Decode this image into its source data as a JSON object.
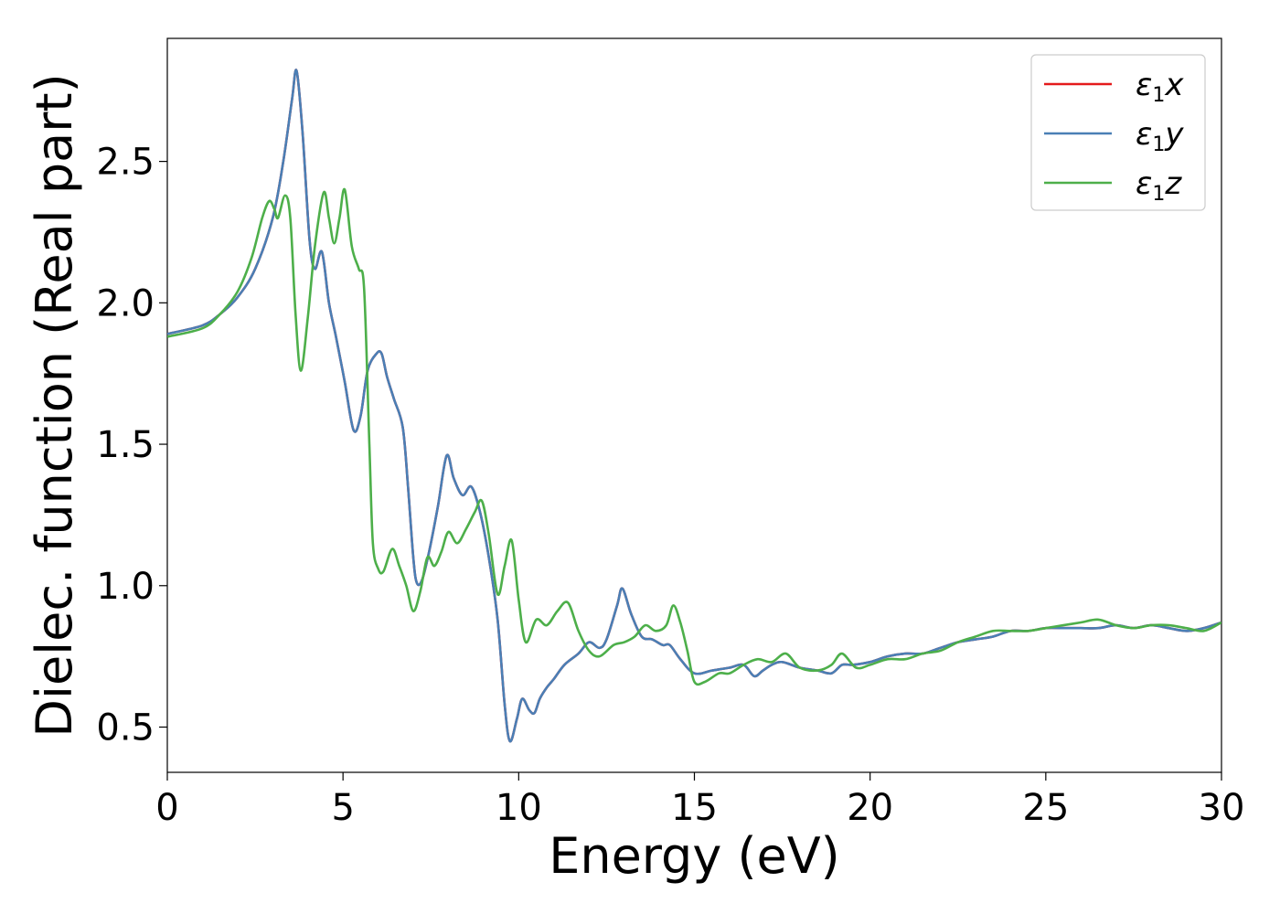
{
  "chart_data": {
    "type": "line",
    "xlabel": "Energy (eV)",
    "ylabel": "Dielec. function (Real part)",
    "xlim": [
      0,
      30
    ],
    "ylim": [
      0.34,
      2.935
    ],
    "xticks": [
      0,
      5,
      10,
      15,
      20,
      25,
      30
    ],
    "xtick_labels": [
      "0",
      "5",
      "10",
      "15",
      "20",
      "25",
      "30"
    ],
    "yticks": [
      0.5,
      1.0,
      1.5,
      2.0,
      2.5
    ],
    "ytick_labels": [
      "0.5",
      "1.0",
      "1.5",
      "2.0",
      "2.5"
    ],
    "grid": false,
    "legend_position": "top-right",
    "series": [
      {
        "name": "ε1x",
        "sym": "ε",
        "sub": "1",
        "axis": "x",
        "color": "#e41a1c",
        "x": [
          0,
          1,
          1.5,
          2,
          2.5,
          3,
          3.3,
          3.55,
          3.68,
          3.85,
          4.05,
          4.2,
          4.4,
          4.6,
          4.8,
          5.05,
          5.3,
          5.5,
          5.7,
          5.95,
          6.1,
          6.25,
          6.45,
          6.7,
          6.85,
          7.0,
          7.1,
          7.25,
          7.45,
          7.7,
          7.95,
          8.15,
          8.4,
          8.65,
          8.9,
          9.15,
          9.4,
          9.6,
          9.75,
          9.95,
          10.1,
          10.3,
          10.45,
          10.6,
          10.8,
          11.0,
          11.3,
          11.7,
          12.0,
          12.3,
          12.5,
          12.8,
          12.95,
          13.2,
          13.5,
          13.8,
          14.1,
          14.3,
          14.6,
          15.0,
          15.5,
          16.0,
          16.4,
          16.7,
          16.95,
          17.2,
          17.5,
          18.0,
          18.5,
          18.9,
          19.2,
          19.5,
          20.0,
          20.5,
          21.0,
          21.5,
          22.0,
          22.5,
          23.0,
          23.5,
          24.0,
          24.5,
          25.0,
          25.5,
          26.0,
          26.5,
          27.0,
          27.5,
          28.0,
          28.5,
          29.0,
          29.5,
          30.0
        ],
        "y": [
          1.89,
          1.92,
          1.96,
          2.02,
          2.12,
          2.3,
          2.5,
          2.72,
          2.82,
          2.6,
          2.22,
          2.12,
          2.18,
          2.0,
          1.88,
          1.72,
          1.55,
          1.6,
          1.76,
          1.82,
          1.82,
          1.74,
          1.66,
          1.56,
          1.35,
          1.1,
          1.01,
          1.02,
          1.12,
          1.28,
          1.46,
          1.38,
          1.32,
          1.35,
          1.26,
          1.1,
          0.88,
          0.58,
          0.45,
          0.53,
          0.6,
          0.56,
          0.55,
          0.6,
          0.64,
          0.67,
          0.72,
          0.76,
          0.8,
          0.78,
          0.81,
          0.93,
          0.99,
          0.9,
          0.82,
          0.81,
          0.79,
          0.79,
          0.74,
          0.69,
          0.7,
          0.71,
          0.72,
          0.68,
          0.7,
          0.72,
          0.73,
          0.71,
          0.7,
          0.69,
          0.72,
          0.72,
          0.73,
          0.75,
          0.76,
          0.76,
          0.78,
          0.8,
          0.81,
          0.82,
          0.84,
          0.84,
          0.85,
          0.85,
          0.85,
          0.85,
          0.86,
          0.85,
          0.86,
          0.85,
          0.84,
          0.85,
          0.87
        ]
      },
      {
        "name": "ε1y",
        "sym": "ε",
        "sub": "1",
        "axis": "y",
        "color": "#4a7fb5",
        "x": [
          0,
          1,
          1.5,
          2,
          2.5,
          3,
          3.3,
          3.55,
          3.68,
          3.85,
          4.05,
          4.2,
          4.4,
          4.6,
          4.8,
          5.05,
          5.3,
          5.5,
          5.7,
          5.95,
          6.1,
          6.25,
          6.45,
          6.7,
          6.85,
          7.0,
          7.1,
          7.25,
          7.45,
          7.7,
          7.95,
          8.15,
          8.4,
          8.65,
          8.9,
          9.15,
          9.4,
          9.6,
          9.75,
          9.95,
          10.1,
          10.3,
          10.45,
          10.6,
          10.8,
          11.0,
          11.3,
          11.7,
          12.0,
          12.3,
          12.5,
          12.8,
          12.95,
          13.2,
          13.5,
          13.8,
          14.1,
          14.3,
          14.6,
          15.0,
          15.5,
          16.0,
          16.4,
          16.7,
          16.95,
          17.2,
          17.5,
          18.0,
          18.5,
          18.9,
          19.2,
          19.5,
          20.0,
          20.5,
          21.0,
          21.5,
          22.0,
          22.5,
          23.0,
          23.5,
          24.0,
          24.5,
          25.0,
          25.5,
          26.0,
          26.5,
          27.0,
          27.5,
          28.0,
          28.5,
          29.0,
          29.5,
          30.0
        ],
        "y": [
          1.89,
          1.92,
          1.96,
          2.02,
          2.12,
          2.3,
          2.5,
          2.72,
          2.82,
          2.6,
          2.22,
          2.12,
          2.18,
          2.0,
          1.88,
          1.72,
          1.55,
          1.6,
          1.76,
          1.82,
          1.82,
          1.74,
          1.66,
          1.56,
          1.35,
          1.1,
          1.01,
          1.02,
          1.12,
          1.28,
          1.46,
          1.38,
          1.32,
          1.35,
          1.26,
          1.1,
          0.88,
          0.58,
          0.45,
          0.53,
          0.6,
          0.56,
          0.55,
          0.6,
          0.64,
          0.67,
          0.72,
          0.76,
          0.8,
          0.78,
          0.81,
          0.93,
          0.99,
          0.9,
          0.82,
          0.81,
          0.79,
          0.79,
          0.74,
          0.69,
          0.7,
          0.71,
          0.72,
          0.68,
          0.7,
          0.72,
          0.73,
          0.71,
          0.7,
          0.69,
          0.72,
          0.72,
          0.73,
          0.75,
          0.76,
          0.76,
          0.78,
          0.8,
          0.81,
          0.82,
          0.84,
          0.84,
          0.85,
          0.85,
          0.85,
          0.85,
          0.86,
          0.85,
          0.86,
          0.85,
          0.84,
          0.85,
          0.87
        ]
      },
      {
        "name": "ε1z",
        "sym": "ε",
        "sub": "1",
        "axis": "z",
        "color": "#4daf4a",
        "x": [
          0,
          1,
          1.5,
          2,
          2.4,
          2.7,
          2.9,
          3.05,
          3.15,
          3.35,
          3.5,
          3.65,
          3.8,
          4.0,
          4.2,
          4.45,
          4.6,
          4.75,
          4.9,
          5.05,
          5.25,
          5.45,
          5.6,
          5.75,
          5.85,
          6.0,
          6.15,
          6.4,
          6.6,
          6.8,
          7.0,
          7.2,
          7.4,
          7.6,
          7.8,
          8.0,
          8.25,
          8.5,
          8.75,
          8.95,
          9.15,
          9.4,
          9.6,
          9.8,
          10.0,
          10.2,
          10.5,
          10.8,
          11.1,
          11.4,
          11.7,
          12.0,
          12.3,
          12.7,
          13.0,
          13.3,
          13.6,
          13.9,
          14.2,
          14.4,
          14.6,
          14.8,
          15.0,
          15.3,
          15.7,
          16.0,
          16.4,
          16.8,
          17.2,
          17.6,
          18.0,
          18.5,
          18.9,
          19.2,
          19.6,
          20.0,
          20.5,
          21.0,
          21.5,
          22.0,
          22.5,
          23.0,
          23.5,
          24.0,
          24.5,
          25.0,
          25.5,
          26.0,
          26.5,
          27.0,
          27.5,
          28.0,
          28.5,
          29.0,
          29.5,
          30.0
        ],
        "y": [
          1.88,
          1.91,
          1.96,
          2.04,
          2.16,
          2.3,
          2.36,
          2.33,
          2.3,
          2.38,
          2.3,
          1.96,
          1.76,
          1.95,
          2.2,
          2.39,
          2.3,
          2.21,
          2.3,
          2.4,
          2.2,
          2.12,
          2.05,
          1.5,
          1.15,
          1.06,
          1.05,
          1.13,
          1.07,
          1.0,
          0.91,
          0.98,
          1.1,
          1.07,
          1.12,
          1.19,
          1.15,
          1.2,
          1.26,
          1.3,
          1.18,
          0.97,
          1.07,
          1.16,
          0.95,
          0.8,
          0.88,
          0.86,
          0.91,
          0.94,
          0.84,
          0.77,
          0.75,
          0.79,
          0.8,
          0.82,
          0.86,
          0.84,
          0.86,
          0.93,
          0.87,
          0.77,
          0.66,
          0.66,
          0.69,
          0.69,
          0.72,
          0.74,
          0.73,
          0.76,
          0.71,
          0.7,
          0.72,
          0.76,
          0.71,
          0.72,
          0.74,
          0.74,
          0.76,
          0.77,
          0.8,
          0.82,
          0.84,
          0.84,
          0.84,
          0.85,
          0.86,
          0.87,
          0.88,
          0.86,
          0.85,
          0.86,
          0.86,
          0.85,
          0.84,
          0.87
        ]
      }
    ]
  }
}
